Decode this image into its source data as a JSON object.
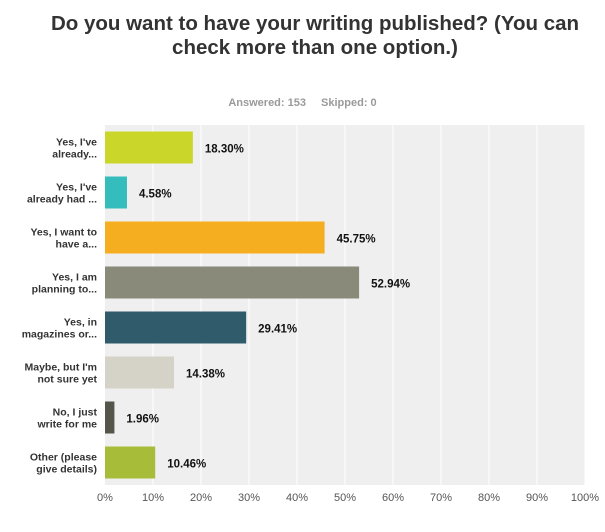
{
  "header": {
    "title": "Do you want to have your writing published? (You can check more than one option.)",
    "answered": "Answered: 153",
    "skipped": "Skipped: 0"
  },
  "chart_data": {
    "type": "bar",
    "orientation": "horizontal",
    "categories": [
      [
        "Yes, I've",
        "already..."
      ],
      [
        "Yes, I've",
        "already had ..."
      ],
      [
        "Yes, I want to",
        "have a..."
      ],
      [
        "Yes, I am",
        "planning to..."
      ],
      [
        "Yes, in",
        "magazines or..."
      ],
      [
        "Maybe, but I'm",
        "not sure yet"
      ],
      [
        "No, I just",
        "write for me"
      ],
      [
        "Other (please",
        "give details)"
      ]
    ],
    "values": [
      18.3,
      4.58,
      45.75,
      52.94,
      29.41,
      14.38,
      1.96,
      10.46
    ],
    "value_labels": [
      "18.30%",
      "4.58%",
      "45.75%",
      "52.94%",
      "29.41%",
      "14.38%",
      "1.96%",
      "10.46%"
    ],
    "colors": [
      "#cbd62a",
      "#35bdbd",
      "#f5ae1f",
      "#8a8a7a",
      "#2f5b6b",
      "#d5d3c7",
      "#55554a",
      "#a7bd3a"
    ],
    "xlim": [
      0,
      100
    ],
    "xticks": [
      "0%",
      "10%",
      "20%",
      "30%",
      "40%",
      "50%",
      "60%",
      "70%",
      "80%",
      "90%",
      "100%"
    ],
    "grid": true,
    "plot_background": "#efefef",
    "grid_color": "#ffffff"
  }
}
